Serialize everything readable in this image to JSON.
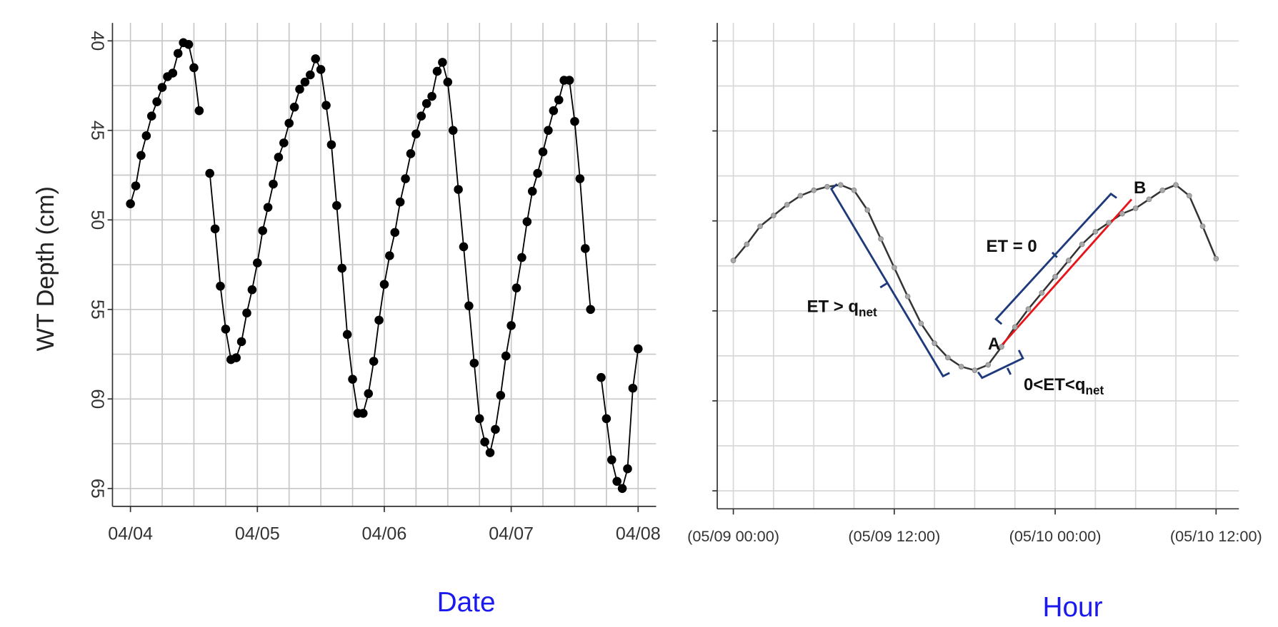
{
  "chart_data": [
    {
      "type": "line",
      "ylabel": "WT Depth (cm)",
      "xlabel": "Date",
      "xlabel_color": "#1a1aee",
      "x": [
        0,
        1,
        2,
        3,
        4,
        5,
        6,
        7,
        8,
        9,
        10,
        11,
        12,
        13,
        14,
        15,
        16,
        17,
        18,
        19,
        20,
        21,
        22,
        23,
        24,
        25,
        26,
        27,
        28,
        29,
        30,
        31,
        32,
        33,
        34,
        35,
        36,
        37,
        38,
        39,
        40,
        41,
        42,
        43,
        44,
        45,
        46,
        47,
        48,
        49,
        50,
        51,
        52,
        53,
        54,
        55,
        56,
        57,
        58,
        59,
        60,
        61,
        62,
        63,
        64,
        65,
        66,
        67,
        68,
        69,
        70,
        71,
        72,
        73,
        74,
        75,
        76,
        77,
        78,
        79,
        80,
        81,
        82,
        83,
        84,
        85,
        86,
        87,
        88,
        89,
        90,
        91,
        92,
        93,
        94,
        95,
        96
      ],
      "series": [
        {
          "color": "#000000",
          "marker_color": "#000000",
          "values": [
            49.1,
            48.1,
            46.4,
            45.3,
            44.2,
            43.4,
            42.6,
            42.0,
            41.8,
            40.7,
            40.1,
            40.2,
            41.5,
            43.9,
            null,
            47.4,
            50.5,
            53.7,
            56.1,
            57.8,
            57.7,
            56.8,
            55.2,
            53.9,
            52.4,
            50.6,
            49.3,
            48.0,
            46.5,
            45.7,
            44.6,
            43.7,
            42.7,
            42.3,
            41.9,
            41.0,
            41.6,
            43.6,
            45.8,
            49.2,
            52.7,
            56.4,
            58.9,
            60.8,
            60.8,
            59.7,
            57.9,
            55.6,
            53.6,
            52.0,
            50.7,
            49.0,
            47.7,
            46.3,
            45.2,
            44.2,
            43.5,
            43.1,
            41.7,
            41.2,
            42.3,
            45.0,
            48.3,
            51.5,
            54.8,
            58.0,
            61.1,
            62.4,
            63.0,
            61.7,
            59.8,
            57.6,
            55.9,
            53.8,
            52.1,
            50.1,
            48.4,
            47.4,
            46.2,
            45.0,
            43.9,
            43.3,
            42.2,
            42.2,
            44.5,
            47.7,
            51.6,
            55.0,
            null,
            58.8,
            61.1,
            63.4,
            64.6,
            65.0,
            63.9,
            59.4,
            57.2
          ]
        }
      ],
      "xlim": [
        -3.4,
        99.4
      ],
      "xticks": [
        {
          "value": 0,
          "label": "04/04"
        },
        {
          "value": 24,
          "label": "04/05"
        },
        {
          "value": 48,
          "label": "04/06"
        },
        {
          "value": 72,
          "label": "04/07"
        },
        {
          "value": 96,
          "label": "04/08"
        }
      ],
      "xgrid": [
        6,
        12,
        18,
        30,
        36,
        42,
        54,
        60,
        66,
        78,
        84,
        90
      ],
      "ylim": [
        39,
        66
      ],
      "y_inverted": true,
      "yticks": [
        40,
        45,
        50,
        55,
        60,
        65
      ],
      "ytick_labels": true,
      "ygrid": [
        42.5,
        47.5,
        52.5,
        57.5,
        62.5
      ],
      "grid": true,
      "grid_color": "#c8c8c8"
    },
    {
      "type": "line",
      "xlabel": "Hour",
      "xlabel_color": "#1a1aee",
      "x": [
        0,
        1,
        2,
        3,
        4,
        5,
        6,
        7,
        8,
        9,
        10,
        11,
        12,
        13,
        14,
        15,
        16,
        17,
        18,
        19,
        20,
        21,
        22,
        23,
        24,
        25,
        26,
        27,
        28,
        29,
        30,
        31,
        32,
        33,
        34,
        35,
        36
      ],
      "series": [
        {
          "color": "#333333",
          "marker_color": "#aaaaaa",
          "values": [
            52.2,
            51.3,
            50.3,
            49.7,
            49.1,
            48.6,
            48.3,
            48.1,
            48.0,
            48.3,
            49.4,
            51.0,
            52.6,
            54.2,
            55.7,
            56.8,
            57.6,
            58.1,
            58.3,
            58.0,
            57.0,
            55.9,
            54.9,
            54.0,
            53.1,
            52.2,
            51.3,
            50.6,
            50.1,
            49.6,
            49.3,
            48.8,
            48.3,
            48.0,
            48.6,
            50.3,
            52.1
          ]
        }
      ],
      "fit_line": {
        "x": [
          19.9,
          29.7
        ],
        "values": [
          57.0,
          48.8
        ],
        "color": "#e8141c"
      },
      "annotations": [
        {
          "text": "ET > q",
          "sub": "net"
        },
        {
          "text": "ET = 0"
        },
        {
          "text": "0<ET<q",
          "sub": "net"
        },
        {
          "text": "A"
        },
        {
          "text": "B"
        }
      ],
      "xlim": [
        -1.2,
        37.7
      ],
      "xticks": [
        {
          "value": 0,
          "label": "(05/09 00:00)"
        },
        {
          "value": 12,
          "label": "(05/09 12:00)"
        },
        {
          "value": 24,
          "label": "(05/10 00:00)"
        },
        {
          "value": 36,
          "label": "(05/10 12:00)"
        }
      ],
      "xgrid": [
        3,
        6,
        9,
        15,
        18,
        21,
        27,
        30,
        33
      ],
      "ylim": [
        39,
        66
      ],
      "y_inverted": true,
      "yticks": [
        40,
        45,
        50,
        55,
        60,
        65
      ],
      "ytick_labels": false,
      "ygrid": [
        42.5,
        47.5,
        52.5,
        57.5,
        62.5
      ],
      "grid": true,
      "grid_color": "#d8d8d8"
    }
  ]
}
